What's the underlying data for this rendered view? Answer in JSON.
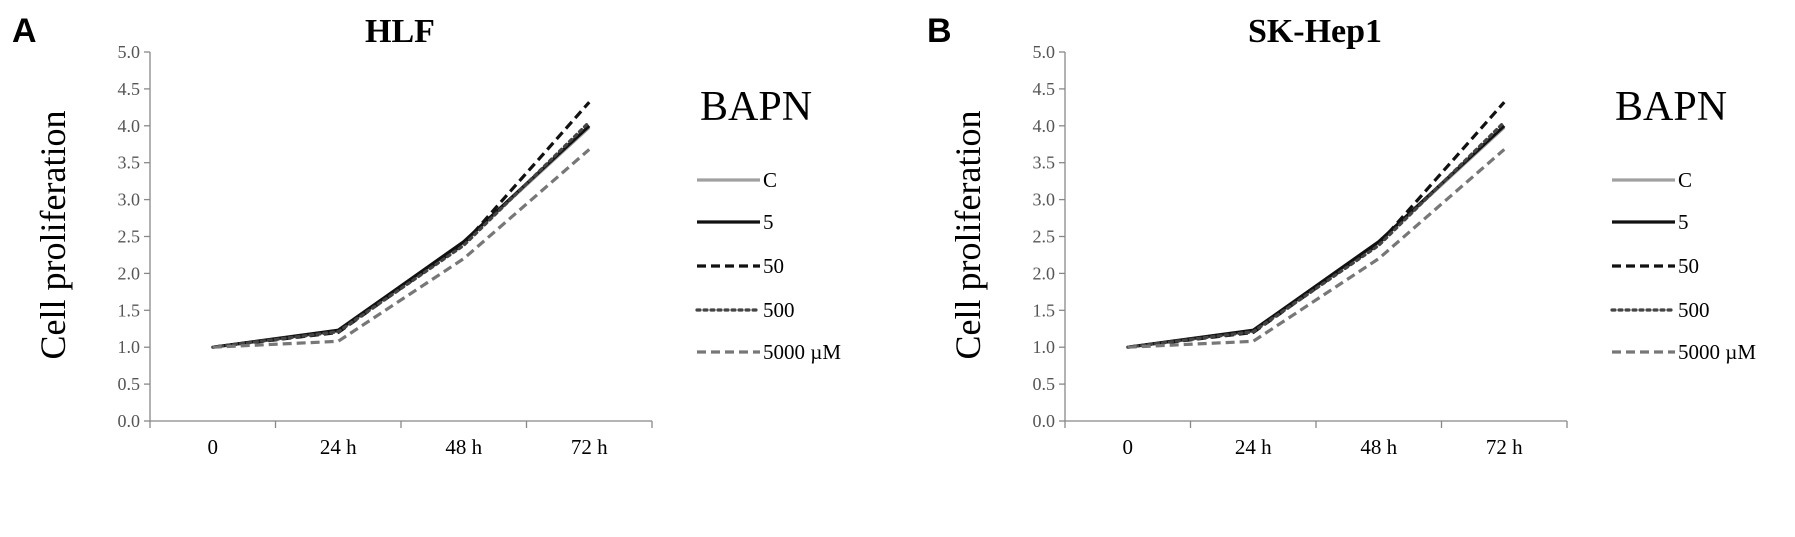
{
  "chart_data": [
    {
      "type": "line",
      "panel_label": "A",
      "title": "HLF",
      "xlabel": "",
      "ylabel": "Cell proliferation",
      "categories": [
        "0",
        "24 h",
        "48 h",
        "72 h"
      ],
      "ylim": [
        0,
        5
      ],
      "yticks": [
        "0.0",
        "0.5",
        "1.0",
        "1.5",
        "2.0",
        "2.5",
        "3.0",
        "3.5",
        "4.0",
        "4.5",
        "5.0"
      ],
      "grid": false,
      "legend_title": "BAPN",
      "legend_position": "right",
      "series": [
        {
          "name": "C",
          "values": [
            1.0,
            1.22,
            2.42,
            3.98
          ],
          "color": "#a0a0a0",
          "dash": "solid"
        },
        {
          "name": "5",
          "values": [
            1.0,
            1.23,
            2.43,
            4.0
          ],
          "color": "#111111",
          "dash": "solid"
        },
        {
          "name": "50",
          "values": [
            1.0,
            1.2,
            2.4,
            4.32
          ],
          "color": "#111111",
          "dash": "dashed"
        },
        {
          "name": "500",
          "values": [
            1.0,
            1.21,
            2.38,
            4.05
          ],
          "color": "#444444",
          "dash": "dotted"
        },
        {
          "name": "5000 µM",
          "values": [
            1.0,
            1.08,
            2.2,
            3.68
          ],
          "color": "#777777",
          "dash": "dashed"
        }
      ]
    },
    {
      "type": "line",
      "panel_label": "B",
      "title": "SK-Hep1",
      "xlabel": "",
      "ylabel": "Cell proliferation",
      "categories": [
        "0",
        "24 h",
        "48 h",
        "72 h"
      ],
      "ylim": [
        0,
        5
      ],
      "yticks": [
        "0.0",
        "0.5",
        "1.0",
        "1.5",
        "2.0",
        "2.5",
        "3.0",
        "3.5",
        "4.0",
        "4.5",
        "5.0"
      ],
      "grid": false,
      "legend_title": "BAPN",
      "legend_position": "right",
      "series": [
        {
          "name": "C",
          "values": [
            1.0,
            1.22,
            2.42,
            3.98
          ],
          "color": "#a0a0a0",
          "dash": "solid"
        },
        {
          "name": "5",
          "values": [
            1.0,
            1.23,
            2.43,
            4.0
          ],
          "color": "#111111",
          "dash": "solid"
        },
        {
          "name": "50",
          "values": [
            1.0,
            1.2,
            2.4,
            4.32
          ],
          "color": "#111111",
          "dash": "dashed"
        },
        {
          "name": "500",
          "values": [
            1.0,
            1.21,
            2.38,
            4.05
          ],
          "color": "#444444",
          "dash": "dotted"
        },
        {
          "name": "5000 µM",
          "values": [
            1.0,
            1.08,
            2.2,
            3.68
          ],
          "color": "#777777",
          "dash": "dashed"
        }
      ]
    }
  ]
}
